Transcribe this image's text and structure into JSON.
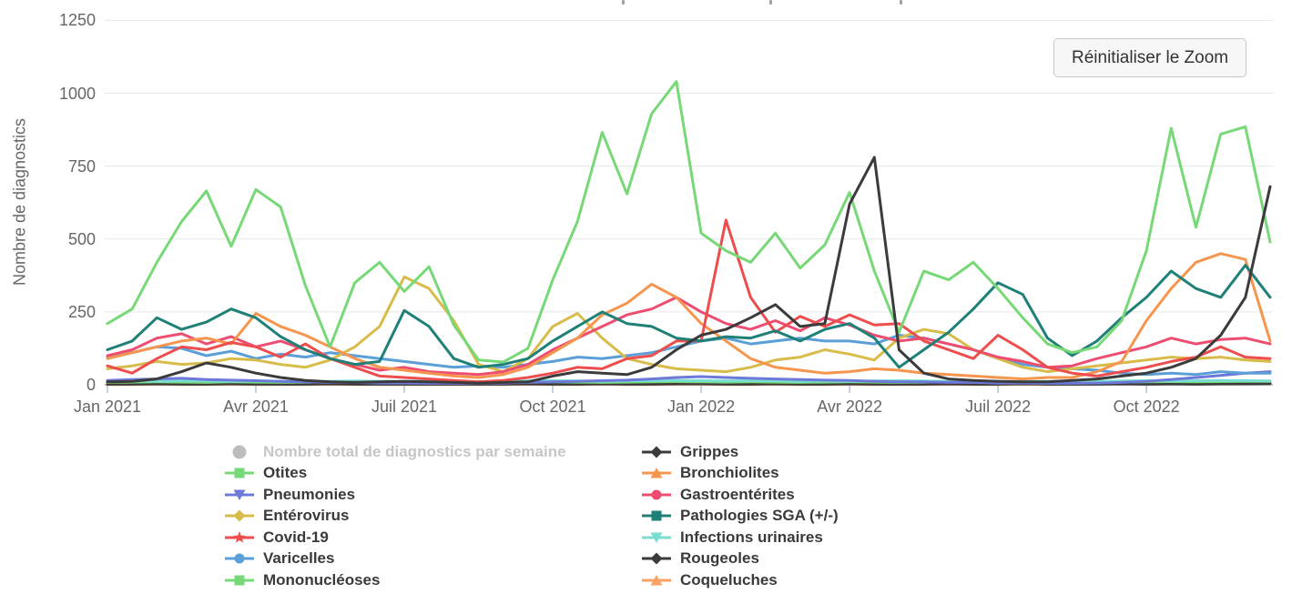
{
  "controls": {
    "reset_zoom_label": "Réinitialiser le Zoom"
  },
  "colors": {
    "grid": "#e7e7e7",
    "baseline": "#c4c4c4",
    "axis_tick": "#b6c5e0",
    "axis_text": "#666666",
    "legend_text": "#3a3a3a",
    "legend_disabled_text": "#c6c6c6"
  },
  "chart_data": {
    "type": "line",
    "title": "",
    "ylabel": "Nombre de diagnostics",
    "xlabel": "",
    "ylim": [
      0,
      1250
    ],
    "yticks": [
      0,
      250,
      500,
      750,
      1000,
      1250
    ],
    "grid": "horizontal",
    "legend_position": "bottom",
    "x_tick_labels": [
      "Jan 2021",
      "Avr 2021",
      "Juil 2021",
      "Oct 2021",
      "Jan 2022",
      "Avr 2022",
      "Juil 2022",
      "Oct 2022"
    ],
    "x_tick_point_indices": [
      0,
      6,
      12,
      18,
      24,
      30,
      36,
      42
    ],
    "points_per_month": 2,
    "draw_order": [
      "Coqueluches",
      "Rougeoles",
      "Mononucléoses",
      "Infections urinaires",
      "Pneumonies",
      "Varicelles",
      "Entérovirus",
      "Gastroentérites",
      "Bronchiolites",
      "Covid-19",
      "Pathologies SGA (+/-)",
      "Otites",
      "Grippes"
    ],
    "legend_columns": [
      [
        "Nombre total de diagnostics par semaine",
        "Otites",
        "Pneumonies",
        "Entérovirus",
        "Covid-19",
        "Varicelles",
        "Mononucléoses"
      ],
      [
        "Grippes",
        "Bronchiolites",
        "Gastroentérites",
        "Pathologies SGA (+/-)",
        "Infections urinaires",
        "Rougeoles",
        "Coqueluches"
      ]
    ],
    "series": [
      {
        "label": "Nombre total de diagnostics par semaine",
        "color": "#bdbdbd",
        "marker": "circle",
        "enabled": false,
        "values": null
      },
      {
        "label": "Otites",
        "color": "#77d877",
        "marker": "square",
        "enabled": true,
        "values": [
          210,
          260,
          420,
          560,
          665,
          475,
          670,
          610,
          340,
          130,
          350,
          420,
          320,
          405,
          205,
          85,
          78,
          125,
          360,
          560,
          866,
          655,
          930,
          1040,
          520,
          460,
          420,
          520,
          400,
          480,
          660,
          390,
          180,
          390,
          360,
          420,
          330,
          230,
          140,
          110,
          130,
          220,
          460,
          880,
          540,
          860,
          885,
          490
        ]
      },
      {
        "label": "Pneumonies",
        "color": "#6d79d8",
        "marker": "triangle-down",
        "enabled": true,
        "values": [
          15,
          18,
          20,
          22,
          18,
          16,
          14,
          12,
          10,
          8,
          8,
          6,
          6,
          5,
          5,
          5,
          6,
          8,
          10,
          12,
          14,
          16,
          20,
          25,
          28,
          25,
          22,
          20,
          18,
          16,
          15,
          12,
          10,
          10,
          8,
          8,
          6,
          6,
          5,
          5,
          6,
          8,
          12,
          18,
          25,
          32,
          40,
          45
        ]
      },
      {
        "label": "Entérovirus",
        "color": "#d8bc4a",
        "marker": "diamond",
        "enabled": true,
        "values": [
          55,
          65,
          80,
          70,
          75,
          90,
          85,
          70,
          60,
          85,
          130,
          200,
          370,
          330,
          220,
          70,
          45,
          90,
          200,
          245,
          160,
          90,
          70,
          55,
          50,
          45,
          60,
          85,
          95,
          120,
          105,
          85,
          160,
          190,
          175,
          120,
          90,
          60,
          45,
          55,
          65,
          75,
          85,
          95,
          90,
          95,
          85,
          80
        ]
      },
      {
        "label": "Covid-19",
        "color": "#ee4d4d",
        "marker": "star",
        "enabled": true,
        "values": [
          65,
          40,
          90,
          130,
          120,
          145,
          130,
          95,
          140,
          90,
          60,
          30,
          25,
          20,
          15,
          10,
          15,
          25,
          40,
          60,
          55,
          90,
          100,
          150,
          150,
          565,
          300,
          180,
          235,
          200,
          240,
          205,
          210,
          150,
          120,
          90,
          170,
          120,
          60,
          40,
          30,
          45,
          60,
          80,
          95,
          130,
          95,
          90
        ]
      },
      {
        "label": "Varicelles",
        "color": "#5b9fd8",
        "marker": "circle",
        "enabled": true,
        "values": [
          95,
          110,
          130,
          125,
          100,
          115,
          90,
          105,
          95,
          110,
          100,
          90,
          80,
          70,
          60,
          65,
          60,
          70,
          80,
          95,
          90,
          100,
          110,
          130,
          150,
          160,
          140,
          150,
          160,
          150,
          150,
          140,
          170,
          160,
          140,
          120,
          90,
          70,
          60,
          55,
          50,
          40,
          35,
          40,
          35,
          45,
          40,
          40
        ]
      },
      {
        "label": "Mononucléoses",
        "color": "#77d877",
        "marker": "square",
        "enabled": true,
        "values": [
          8,
          9,
          10,
          9,
          8,
          10,
          9,
          8,
          9,
          10,
          9,
          8,
          8,
          7,
          8,
          9,
          8,
          9,
          10,
          9,
          8,
          9,
          10,
          11,
          10,
          9,
          10,
          9,
          8,
          9,
          10,
          9,
          8,
          9,
          10,
          9,
          8,
          9,
          8,
          9,
          10,
          9,
          10,
          11,
          10,
          11,
          12,
          12
        ]
      },
      {
        "label": "Grippes",
        "color": "#3b3b3b",
        "marker": "diamond",
        "enabled": true,
        "values": [
          10,
          12,
          20,
          45,
          75,
          60,
          40,
          25,
          15,
          10,
          8,
          10,
          12,
          10,
          8,
          6,
          8,
          10,
          30,
          45,
          40,
          35,
          60,
          120,
          170,
          190,
          230,
          275,
          200,
          210,
          620,
          780,
          120,
          40,
          20,
          15,
          12,
          10,
          10,
          15,
          20,
          30,
          40,
          60,
          90,
          170,
          300,
          680
        ]
      },
      {
        "label": "Bronchiolites",
        "color": "#f6954e",
        "marker": "triangle-up",
        "enabled": true,
        "values": [
          90,
          110,
          130,
          150,
          160,
          140,
          245,
          200,
          170,
          130,
          90,
          60,
          50,
          40,
          30,
          25,
          35,
          60,
          110,
          160,
          240,
          280,
          345,
          300,
          210,
          150,
          90,
          60,
          50,
          40,
          45,
          55,
          50,
          40,
          35,
          30,
          25,
          20,
          25,
          25,
          45,
          80,
          220,
          330,
          420,
          450,
          430,
          150
        ]
      },
      {
        "label": "Gastroentérites",
        "color": "#ee4d72",
        "marker": "circle",
        "enabled": true,
        "values": [
          100,
          120,
          160,
          175,
          140,
          165,
          130,
          150,
          120,
          90,
          70,
          50,
          60,
          45,
          40,
          35,
          45,
          70,
          120,
          160,
          200,
          240,
          260,
          300,
          250,
          210,
          190,
          220,
          185,
          230,
          205,
          170,
          150,
          160,
          140,
          120,
          95,
          80,
          60,
          65,
          90,
          110,
          130,
          160,
          140,
          155,
          160,
          140
        ]
      },
      {
        "label": "Pathologies SGA (+/-)",
        "color": "#1f8078",
        "marker": "square",
        "enabled": true,
        "values": [
          120,
          150,
          230,
          190,
          215,
          260,
          230,
          165,
          120,
          90,
          70,
          80,
          255,
          200,
          90,
          60,
          70,
          90,
          150,
          200,
          250,
          210,
          200,
          160,
          150,
          165,
          160,
          185,
          150,
          190,
          210,
          160,
          60,
          120,
          180,
          260,
          350,
          310,
          160,
          100,
          150,
          230,
          300,
          390,
          330,
          300,
          410,
          300
        ]
      },
      {
        "label": "Infections urinaires",
        "color": "#79ded2",
        "marker": "triangle-down",
        "enabled": true,
        "values": [
          12,
          13,
          12,
          14,
          13,
          12,
          13,
          12,
          11,
          12,
          13,
          12,
          12,
          13,
          12,
          11,
          12,
          13,
          14,
          13,
          12,
          13,
          14,
          15,
          14,
          13,
          14,
          13,
          12,
          13,
          12,
          13,
          14,
          13,
          12,
          13,
          12,
          11,
          12,
          13,
          12,
          13,
          14,
          13,
          14,
          15,
          14,
          13
        ]
      },
      {
        "label": "Rougeoles",
        "color": "#3b3b3b",
        "marker": "diamond",
        "enabled": true,
        "values": [
          2,
          2,
          3,
          2,
          2,
          3,
          2,
          2,
          2,
          3,
          2,
          2,
          2,
          2,
          2,
          2,
          2,
          3,
          2,
          2,
          3,
          2,
          2,
          3,
          3,
          2,
          2,
          3,
          2,
          2,
          3,
          2,
          2,
          2,
          3,
          2,
          2,
          3,
          2,
          2,
          2,
          3,
          2,
          3,
          2,
          3,
          3,
          4
        ]
      },
      {
        "label": "Coqueluches",
        "color": "#f8a263",
        "marker": "triangle-up",
        "enabled": true,
        "values": [
          1,
          1,
          2,
          1,
          1,
          2,
          1,
          1,
          1,
          2,
          1,
          1,
          1,
          1,
          1,
          1,
          1,
          2,
          1,
          1,
          2,
          1,
          1,
          2,
          2,
          1,
          1,
          2,
          1,
          1,
          2,
          1,
          1,
          1,
          2,
          1,
          1,
          2,
          1,
          2,
          2,
          3,
          3,
          4,
          4,
          5,
          5,
          6
        ]
      }
    ]
  }
}
